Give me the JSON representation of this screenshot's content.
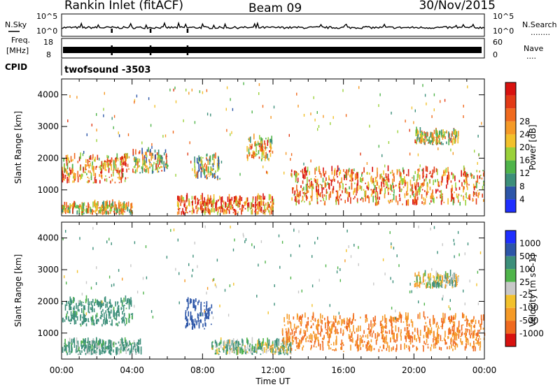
{
  "header": {
    "station": "Rankin Inlet (fitACF)",
    "beam": "Beam 09",
    "date": "30/Nov/2015"
  },
  "strip_labels": {
    "nsky": "N.Sky",
    "nsearch": "N.Search",
    "nsearch_dots": "........",
    "freq_line1": "Freq.",
    "freq_line2": "[MHz]",
    "nave": "Nave",
    "nave_dots": "....",
    "cpid": "CPID",
    "cpid_value": "twofsound -3503"
  },
  "strip_ticks": {
    "noise_left": [
      "10^5",
      "10^0"
    ],
    "noise_right": [
      "10^5",
      "10^0"
    ],
    "freq_left": [
      "18",
      "8"
    ],
    "nave_right": [
      "60",
      "0"
    ]
  },
  "chart_data": [
    {
      "type": "heatmap",
      "name": "power",
      "title": "",
      "xlabel": "",
      "ylabel": "Slant Range [km]",
      "xlim": [
        "00:00",
        "24:00"
      ],
      "ylim": [
        180,
        4500
      ],
      "y_ticks": [
        1000,
        2000,
        3000,
        4000
      ],
      "grid": false,
      "colorbar": {
        "label": "Power [dB]",
        "ticks": [
          "4",
          "8",
          "12",
          "16",
          "20",
          "24",
          "28"
        ],
        "colors": [
          "#1f2fff",
          "#2d56a8",
          "#3c8f7a",
          "#4fb44a",
          "#9ad13a",
          "#f2c12c",
          "#f59a27",
          "#f06a1e",
          "#e23a16",
          "#d8120f"
        ]
      },
      "echo_regions_hours_km": [
        {
          "x": [
            0.0,
            3.8
          ],
          "y": [
            1200,
            2000
          ],
          "level": 0.7
        },
        {
          "x": [
            0.0,
            4.0
          ],
          "y": [
            200,
            500
          ],
          "level": 0.55
        },
        {
          "x": [
            4.0,
            6.0
          ],
          "y": [
            1500,
            2200
          ],
          "level": 0.5
        },
        {
          "x": [
            7.5,
            9.0
          ],
          "y": [
            1300,
            2000
          ],
          "level": 0.45
        },
        {
          "x": [
            6.5,
            12.0
          ],
          "y": [
            200,
            700
          ],
          "level": 0.75
        },
        {
          "x": [
            10.5,
            12.0
          ],
          "y": [
            1900,
            2600
          ],
          "level": 0.6
        },
        {
          "x": [
            13.0,
            24.0
          ],
          "y": [
            500,
            1600
          ],
          "level": 0.7
        },
        {
          "x": [
            20.0,
            22.5
          ],
          "y": [
            2400,
            2800
          ],
          "level": 0.55
        }
      ]
    },
    {
      "type": "heatmap",
      "name": "velocity",
      "title": "",
      "xlabel": "Time UT",
      "ylabel": "Slant Range [km]",
      "xlim": [
        "00:00",
        "24:00"
      ],
      "ylim": [
        180,
        4500
      ],
      "x_ticks": [
        "00:00",
        "04:00",
        "08:00",
        "12:00",
        "16:00",
        "20:00",
        "00:00"
      ],
      "y_ticks": [
        1000,
        2000,
        3000,
        4000
      ],
      "grid": false,
      "colorbar": {
        "label": "Velocity [m s^-1]",
        "ticks": [
          "1000",
          "500",
          "100",
          "25",
          "-25",
          "-100",
          "-500",
          "-1000"
        ],
        "colors": [
          "#1f2fff",
          "#2d56a8",
          "#3c8f7a",
          "#4fb44a",
          "#c8c8c8",
          "#f2c12c",
          "#f59a27",
          "#f06a1e",
          "#d8120f"
        ]
      },
      "echo_regions_hours_km": [
        {
          "x": [
            0.0,
            4.0
          ],
          "y": [
            1200,
            2000
          ],
          "velocity_m_s": 150
        },
        {
          "x": [
            0.0,
            4.5
          ],
          "y": [
            300,
            700
          ],
          "velocity_m_s": 100
        },
        {
          "x": [
            7.0,
            8.5
          ],
          "y": [
            1100,
            2000
          ],
          "velocity_m_s": 500
        },
        {
          "x": [
            8.5,
            13.0
          ],
          "y": [
            300,
            700
          ],
          "velocity_m_s": 40
        },
        {
          "x": [
            12.5,
            24.0
          ],
          "y": [
            400,
            1500
          ],
          "velocity_m_s": -300
        },
        {
          "x": [
            20.0,
            22.5
          ],
          "y": [
            2400,
            2800
          ],
          "velocity_m_s": 0
        }
      ]
    }
  ]
}
